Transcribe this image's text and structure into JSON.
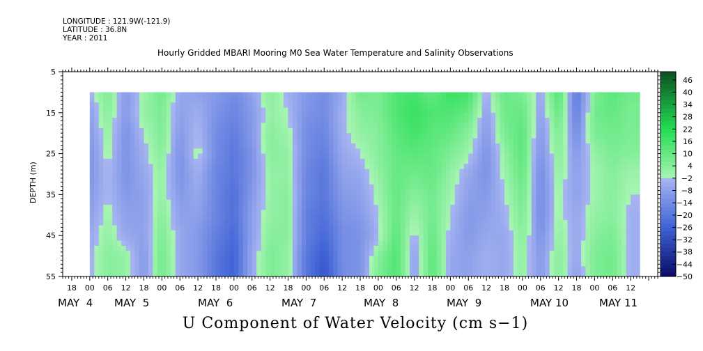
{
  "header": {
    "longitude": "LONGITUDE : 121.9W(-121.9)",
    "latitude": "LATITUDE : 36.8N",
    "year": "YEAR : 2011"
  },
  "title": "Hourly Gridded MBARI Mooring M0 Sea Water Temperature and Salinity Observations",
  "footer_title": "U Component of Water Velocity (cm s−1)",
  "chart_data": {
    "type": "heatmap",
    "title": "Hourly Gridded MBARI Mooring M0 Sea Water Temperature and Salinity Observations",
    "ylabel": "DEPTH (m)",
    "xlabel": "",
    "y_ticks": [
      "5",
      "15",
      "25",
      "35",
      "45",
      "55"
    ],
    "ylim": [
      55,
      5
    ],
    "x_hour_ticks": [
      "18",
      "00",
      "06",
      "12",
      "18",
      "00",
      "06",
      "12",
      "18",
      "00",
      "06",
      "12",
      "18",
      "00",
      "06",
      "12",
      "18",
      "00",
      "06",
      "12",
      "18",
      "00",
      "06",
      "12",
      "18",
      "00",
      "06",
      "12",
      "18",
      "00",
      "06",
      "12"
    ],
    "x_day_labels": [
      "MAY  4",
      "MAY  5",
      "MAY  6",
      "MAY  7",
      "MAY  8",
      "MAY  9",
      "MAY 10",
      "MAY 11"
    ],
    "colorbar_ticks": [
      "46",
      "40",
      "34",
      "28",
      "22",
      "16",
      "10",
      "4",
      "−2",
      "−8",
      "−14",
      "−20",
      "−26",
      "−32",
      "−38",
      "−44",
      "−50"
    ],
    "value_range": [
      -50,
      50
    ],
    "data_depth_range": [
      10,
      55
    ],
    "data_time_range_hours": [
      0,
      183
    ],
    "data_depth_levels": [
      10,
      15,
      20,
      25,
      30,
      35,
      40,
      45,
      50,
      55
    ],
    "data_time_hours": [
      0,
      6,
      12,
      18,
      24,
      30,
      36,
      42,
      48,
      54,
      60,
      66,
      72,
      78,
      84,
      90,
      96,
      102,
      108,
      114,
      120,
      126,
      132,
      138,
      144,
      150,
      156,
      162,
      168,
      174,
      180
    ],
    "values_cm_s": [
      [
        -4,
        6,
        -10,
        0,
        8,
        -6,
        -8,
        -10,
        -14,
        -8,
        4,
        -4,
        -10,
        -14,
        -6,
        8,
        6,
        14,
        16,
        10,
        18,
        16,
        -4,
        10,
        6,
        -6,
        14,
        -20,
        6,
        12,
        8
      ],
      [
        -8,
        4,
        -10,
        2,
        6,
        -8,
        -4,
        -12,
        -16,
        -10,
        2,
        -2,
        -12,
        -14,
        -4,
        4,
        6,
        14,
        18,
        14,
        14,
        10,
        -8,
        8,
        10,
        -8,
        10,
        -18,
        8,
        10,
        6
      ],
      [
        -10,
        2,
        -12,
        -2,
        6,
        -10,
        -2,
        -14,
        -18,
        -10,
        4,
        0,
        -14,
        -16,
        -4,
        2,
        4,
        12,
        16,
        12,
        10,
        4,
        -10,
        6,
        12,
        -10,
        6,
        -14,
        6,
        8,
        6
      ],
      [
        -12,
        0,
        -12,
        -4,
        4,
        -12,
        0,
        -14,
        -20,
        -12,
        4,
        2,
        -14,
        -18,
        -6,
        -2,
        4,
        10,
        12,
        10,
        6,
        0,
        -12,
        2,
        12,
        -12,
        4,
        -10,
        2,
        6,
        4
      ],
      [
        -12,
        -2,
        -12,
        -6,
        2,
        -12,
        -4,
        -16,
        -20,
        -12,
        2,
        2,
        -16,
        -20,
        -8,
        -6,
        2,
        10,
        8,
        10,
        2,
        -6,
        -12,
        0,
        10,
        -14,
        2,
        -8,
        0,
        4,
        0
      ],
      [
        -10,
        -2,
        -10,
        -8,
        2,
        -10,
        -6,
        -16,
        -22,
        -10,
        2,
        4,
        -16,
        -20,
        -10,
        -8,
        0,
        10,
        4,
        8,
        0,
        -8,
        -10,
        -2,
        8,
        -14,
        0,
        -8,
        0,
        4,
        -2
      ],
      [
        -8,
        0,
        -8,
        -8,
        4,
        -8,
        -8,
        -16,
        -22,
        -8,
        2,
        4,
        -18,
        -22,
        -12,
        -10,
        -2,
        10,
        0,
        8,
        -2,
        -10,
        -8,
        -4,
        6,
        -14,
        0,
        -6,
        2,
        4,
        -4
      ],
      [
        -6,
        2,
        -6,
        -8,
        6,
        -6,
        -10,
        -18,
        -24,
        -8,
        4,
        4,
        -18,
        -24,
        -14,
        -12,
        -4,
        12,
        -4,
        10,
        -4,
        -10,
        -6,
        -6,
        4,
        -12,
        2,
        -6,
        4,
        6,
        -4
      ],
      [
        -4,
        4,
        2,
        -10,
        8,
        -6,
        -10,
        -20,
        -26,
        -6,
        6,
        2,
        -20,
        -28,
        -14,
        -12,
        4,
        14,
        -8,
        12,
        -6,
        -8,
        -4,
        -6,
        2,
        -10,
        4,
        -6,
        6,
        8,
        -4
      ],
      [
        -4,
        4,
        2,
        -10,
        8,
        -6,
        -10,
        -20,
        -26,
        -6,
        6,
        2,
        -20,
        -30,
        -14,
        -12,
        6,
        14,
        -8,
        12,
        -6,
        -8,
        -4,
        -6,
        2,
        -10,
        4,
        -8,
        6,
        8,
        -4
      ]
    ]
  },
  "colors": {
    "negative_dark": "#0a0a66",
    "negative_mid": "#3f63d6",
    "negative_light": "#a8b5f1",
    "positive_light": "#a9f4b4",
    "positive_mid": "#22dd52",
    "positive_dark": "#0a5022"
  }
}
